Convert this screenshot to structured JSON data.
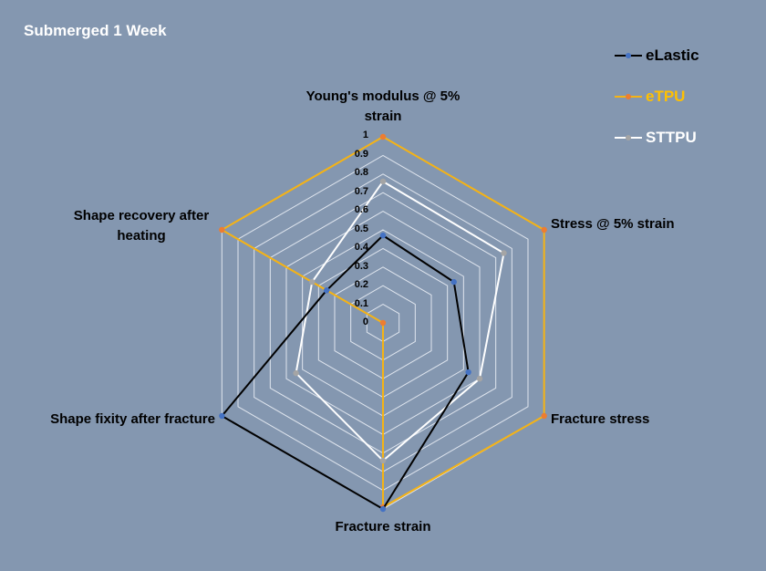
{
  "chart_data": {
    "type": "radar",
    "title": "Submerged 1 Week",
    "axes": [
      "Young's modulus @ 5% strain",
      "Stress @ 5% strain",
      "Fracture stress",
      "Fracture strain",
      "Shape fixity after fracture",
      "Shape recovery after heating"
    ],
    "axis_label_lines": [
      [
        "Young's modulus @ 5%",
        "strain"
      ],
      [
        "Stress @ 5% strain"
      ],
      [
        "Fracture stress"
      ],
      [
        "Fracture strain"
      ],
      [
        "Shape fixity after fracture"
      ],
      [
        "Shape recovery after",
        "heating"
      ]
    ],
    "rmin": 0,
    "rmax": 1,
    "ticks": [
      "0",
      "0.1",
      "0.2",
      "0.3",
      "0.4",
      "0.5",
      "0.6",
      "0.7",
      "0.8",
      "0.9",
      "1"
    ],
    "series": [
      {
        "name": "eLastic",
        "values": [
          0.47,
          0.44,
          0.53,
          1.0,
          1.0,
          0.35
        ],
        "line_color": "#000000",
        "marker_color": "#4472c4",
        "label_color": "#000000"
      },
      {
        "name": "eTPU",
        "values": [
          1.0,
          1.0,
          1.0,
          0.99,
          0.0,
          1.0
        ],
        "line_color": "#f5b315",
        "marker_color": "#ed7d31",
        "label_color": "#ffc000"
      },
      {
        "name": "STTPU",
        "values": [
          0.76,
          0.75,
          0.6,
          0.74,
          0.54,
          0.44
        ],
        "line_color": "#ffffff",
        "marker_color": "#a5a5a5",
        "label_color": "#ffffff"
      }
    ],
    "grid": true,
    "legend": "top-right"
  }
}
